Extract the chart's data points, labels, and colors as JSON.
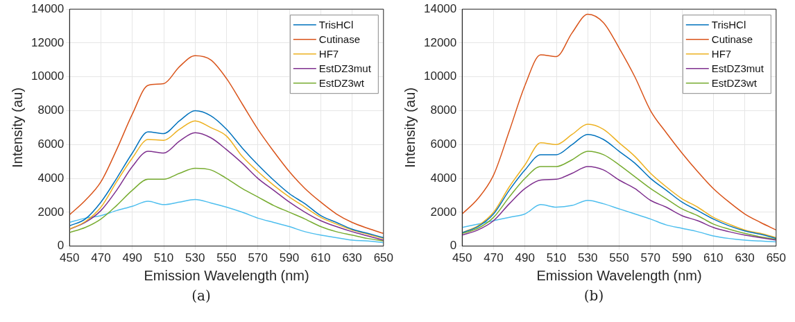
{
  "chart_data": [
    {
      "type": "line",
      "xlabel": "Emission Wavelength (nm)",
      "ylabel": "Intensity (au)",
      "annotations": [
        "(a)"
      ],
      "xlim": [
        450,
        650
      ],
      "ylim": [
        0,
        14000
      ],
      "xticks": [
        450,
        470,
        490,
        510,
        530,
        550,
        570,
        590,
        610,
        630,
        650
      ],
      "yticks": [
        0,
        2000,
        4000,
        6000,
        8000,
        10000,
        12000,
        14000
      ],
      "grid": true,
      "legend": "top right",
      "marker": "none",
      "line_style": "solid",
      "x": [
        450,
        460,
        470,
        480,
        490,
        500,
        510,
        520,
        530,
        540,
        550,
        560,
        570,
        580,
        590,
        600,
        610,
        620,
        630,
        640,
        650
      ],
      "series": [
        {
          "name": "TrisHCl",
          "color": "#0072bd",
          "values": [
            1200,
            1600,
            2600,
            4000,
            5500,
            6750,
            6650,
            7400,
            8000,
            7700,
            6900,
            5800,
            4800,
            3900,
            3100,
            2500,
            1800,
            1400,
            1000,
            750,
            500
          ]
        },
        {
          "name": "Cutinase",
          "color": "#d95319",
          "values": [
            1850,
            2700,
            3800,
            5700,
            7800,
            9500,
            9600,
            10600,
            11250,
            11000,
            9900,
            8400,
            6900,
            5600,
            4400,
            3400,
            2600,
            1900,
            1400,
            1050,
            750
          ]
        },
        {
          "name": "HF7",
          "color": "#edb120",
          "values": [
            1000,
            1450,
            2300,
            3800,
            5200,
            6300,
            6250,
            6900,
            7400,
            7000,
            6500,
            5300,
            4400,
            3600,
            2900,
            2300,
            1700,
            1300,
            950,
            700,
            450
          ]
        },
        {
          "name": "EstDZ3mut",
          "color": "#7e2f8e",
          "values": [
            1000,
            1400,
            2100,
            3300,
            4700,
            5600,
            5500,
            6200,
            6700,
            6400,
            5700,
            4900,
            4000,
            3300,
            2600,
            2000,
            1500,
            1150,
            850,
            600,
            350
          ]
        },
        {
          "name": "EstDZ3wt",
          "color": "#77ac30",
          "values": [
            800,
            1100,
            1600,
            2400,
            3300,
            3950,
            3950,
            4300,
            4600,
            4500,
            4000,
            3400,
            2900,
            2400,
            2000,
            1600,
            1150,
            850,
            650,
            450,
            300
          ]
        },
        {
          "color": "#4dbeee",
          "values": [
            1400,
            1650,
            1800,
            2100,
            2350,
            2650,
            2450,
            2600,
            2750,
            2550,
            2300,
            2000,
            1650,
            1400,
            1150,
            850,
            650,
            500,
            350,
            300,
            200
          ]
        }
      ]
    },
    {
      "type": "line",
      "xlabel": "Emission Wavelength (nm)",
      "ylabel": "Intensity (au)",
      "annotations": [
        "(b)"
      ],
      "xlim": [
        450,
        650
      ],
      "ylim": [
        0,
        14000
      ],
      "xticks": [
        450,
        470,
        490,
        510,
        530,
        550,
        570,
        590,
        610,
        630,
        650
      ],
      "yticks": [
        0,
        2000,
        4000,
        6000,
        8000,
        10000,
        12000,
        14000
      ],
      "grid": true,
      "legend": "top right",
      "marker": "none",
      "line_style": "solid",
      "x": [
        450,
        460,
        470,
        480,
        490,
        500,
        510,
        520,
        530,
        540,
        550,
        560,
        570,
        580,
        590,
        600,
        610,
        620,
        630,
        640,
        650
      ],
      "series": [
        {
          "name": "TrisHCl",
          "color": "#0072bd",
          "values": [
            800,
            1150,
            1900,
            3300,
            4500,
            5400,
            5400,
            6000,
            6600,
            6300,
            5600,
            4900,
            4000,
            3300,
            2600,
            2100,
            1600,
            1200,
            900,
            700,
            450
          ]
        },
        {
          "name": "Cutinase",
          "color": "#d95319",
          "values": [
            1900,
            2800,
            4200,
            6800,
            9500,
            11300,
            11200,
            12600,
            13700,
            13200,
            11700,
            10000,
            8000,
            6700,
            5500,
            4400,
            3400,
            2600,
            1900,
            1400,
            950
          ]
        },
        {
          "name": "HF7",
          "color": "#edb120",
          "values": [
            800,
            1200,
            2000,
            3500,
            4800,
            6100,
            6000,
            6600,
            7200,
            6900,
            6100,
            5300,
            4300,
            3500,
            2800,
            2300,
            1700,
            1300,
            950,
            750,
            500
          ]
        },
        {
          "name": "EstDZ3mut",
          "color": "#7e2f8e",
          "values": [
            650,
            950,
            1500,
            2500,
            3400,
            3900,
            3950,
            4300,
            4700,
            4500,
            3900,
            3400,
            2700,
            2300,
            1800,
            1500,
            1100,
            850,
            650,
            500,
            350
          ]
        },
        {
          "name": "EstDZ3wt",
          "color": "#77ac30",
          "values": [
            750,
            1050,
            1700,
            2900,
            4000,
            4700,
            4700,
            5100,
            5600,
            5400,
            4800,
            4100,
            3400,
            2800,
            2200,
            1800,
            1300,
            1000,
            750,
            550,
            400
          ]
        },
        {
          "color": "#4dbeee",
          "values": [
            1100,
            1300,
            1500,
            1700,
            1900,
            2450,
            2300,
            2400,
            2700,
            2500,
            2200,
            1900,
            1600,
            1250,
            1050,
            850,
            600,
            450,
            350,
            300,
            250
          ]
        }
      ]
    }
  ]
}
